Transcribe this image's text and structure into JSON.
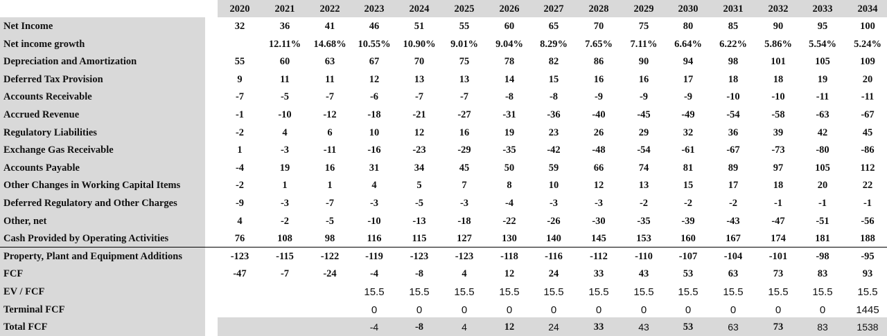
{
  "years": [
    "2020",
    "2021",
    "2022",
    "2023",
    "2024",
    "2025",
    "2026",
    "2027",
    "2028",
    "2029",
    "2030",
    "2031",
    "2032",
    "2033",
    "2034"
  ],
  "rows": [
    {
      "label": "Net Income",
      "style": "serif-bold",
      "values": [
        "32",
        "36",
        "41",
        "46",
        "51",
        "55",
        "60",
        "65",
        "70",
        "75",
        "80",
        "85",
        "90",
        "95",
        "100"
      ]
    },
    {
      "label": "Net income growth",
      "style": "serif-bold",
      "values": [
        "",
        "12.11%",
        "14.68%",
        "10.55%",
        "10.90%",
        "9.01%",
        "9.04%",
        "8.29%",
        "7.65%",
        "7.11%",
        "6.64%",
        "6.22%",
        "5.86%",
        "5.54%",
        "5.24%"
      ]
    },
    {
      "label": "Depreciation and Amortization",
      "style": "serif-bold",
      "values": [
        "55",
        "60",
        "63",
        "67",
        "70",
        "75",
        "78",
        "82",
        "86",
        "90",
        "94",
        "98",
        "101",
        "105",
        "109"
      ]
    },
    {
      "label": "Deferred Tax Provision",
      "style": "serif-bold",
      "values": [
        "9",
        "11",
        "11",
        "12",
        "13",
        "13",
        "14",
        "15",
        "16",
        "16",
        "17",
        "18",
        "18",
        "19",
        "20"
      ]
    },
    {
      "label": "Accounts Receivable",
      "style": "serif-bold",
      "values": [
        "-7",
        "-5",
        "-7",
        "-6",
        "-7",
        "-7",
        "-8",
        "-8",
        "-9",
        "-9",
        "-9",
        "-10",
        "-10",
        "-11",
        "-11"
      ]
    },
    {
      "label": "Accrued Revenue",
      "style": "serif-bold",
      "values": [
        "-1",
        "-10",
        "-12",
        "-18",
        "-21",
        "-27",
        "-31",
        "-36",
        "-40",
        "-45",
        "-49",
        "-54",
        "-58",
        "-63",
        "-67"
      ]
    },
    {
      "label": "Regulatory Liabilities",
      "style": "serif-bold",
      "values": [
        "-2",
        "4",
        "6",
        "10",
        "12",
        "16",
        "19",
        "23",
        "26",
        "29",
        "32",
        "36",
        "39",
        "42",
        "45"
      ]
    },
    {
      "label": "Exchange Gas Receivable",
      "style": "serif-bold",
      "values": [
        "1",
        "-3",
        "-11",
        "-16",
        "-23",
        "-29",
        "-35",
        "-42",
        "-48",
        "-54",
        "-61",
        "-67",
        "-73",
        "-80",
        "-86"
      ]
    },
    {
      "label": "Accounts Payable",
      "style": "serif-bold",
      "values": [
        "-4",
        "19",
        "16",
        "31",
        "34",
        "45",
        "50",
        "59",
        "66",
        "74",
        "81",
        "89",
        "97",
        "105",
        "112"
      ]
    },
    {
      "label": "Other Changes in Working Capital Items",
      "style": "serif-bold",
      "values": [
        "-2",
        "1",
        "1",
        "4",
        "5",
        "7",
        "8",
        "10",
        "12",
        "13",
        "15",
        "17",
        "18",
        "20",
        "22"
      ]
    },
    {
      "label": "Deferred Regulatory and Other Charges",
      "style": "serif-bold",
      "values": [
        "-9",
        "-3",
        "-7",
        "-3",
        "-5",
        "-3",
        "-4",
        "-3",
        "-3",
        "-2",
        "-2",
        "-2",
        "-1",
        "-1",
        "-1"
      ]
    },
    {
      "label": "Other, net",
      "style": "serif-bold",
      "values": [
        "4",
        "-2",
        "-5",
        "-10",
        "-13",
        "-18",
        "-22",
        "-26",
        "-30",
        "-35",
        "-39",
        "-43",
        "-47",
        "-51",
        "-56"
      ]
    },
    {
      "label": "Cash Provided by Operating Activities",
      "style": "serif-bold",
      "values": [
        "76",
        "108",
        "98",
        "116",
        "115",
        "127",
        "130",
        "140",
        "145",
        "153",
        "160",
        "167",
        "174",
        "181",
        "188"
      ]
    },
    {
      "label": "Property, Plant and Equipment Additions",
      "style": "serif-bold",
      "values": [
        "-123",
        "-115",
        "-122",
        "-119",
        "-123",
        "-123",
        "-118",
        "-116",
        "-112",
        "-110",
        "-107",
        "-104",
        "-101",
        "-98",
        "-95"
      ]
    },
    {
      "label": "FCF",
      "style": "serif-bold",
      "values": [
        "-47",
        "-7",
        "-24",
        "-4",
        "-8",
        "4",
        "12",
        "24",
        "33",
        "43",
        "53",
        "63",
        "73",
        "83",
        "93"
      ]
    },
    {
      "label": "EV / FCF",
      "style": "sans",
      "values": [
        "",
        "",
        "",
        "15.5",
        "15.5",
        "15.5",
        "15.5",
        "15.5",
        "15.5",
        "15.5",
        "15.5",
        "15.5",
        "15.5",
        "15.5",
        "15.5"
      ]
    },
    {
      "label": "Terminal FCF",
      "style": "sans",
      "values": [
        "",
        "",
        "",
        "0",
        "0",
        "0",
        "0",
        "0",
        "0",
        "0",
        "0",
        "0",
        "0",
        "0",
        "1445"
      ]
    },
    {
      "label": "Total FCF",
      "style": "mixed",
      "values": [
        "",
        "",
        "",
        "-4",
        "-8",
        "4",
        "12",
        "24",
        "33",
        "43",
        "53",
        "63",
        "73",
        "83",
        "1538"
      ],
      "bold_flags": [
        false,
        false,
        false,
        false,
        true,
        false,
        true,
        false,
        true,
        false,
        true,
        false,
        true,
        false,
        false
      ]
    }
  ]
}
